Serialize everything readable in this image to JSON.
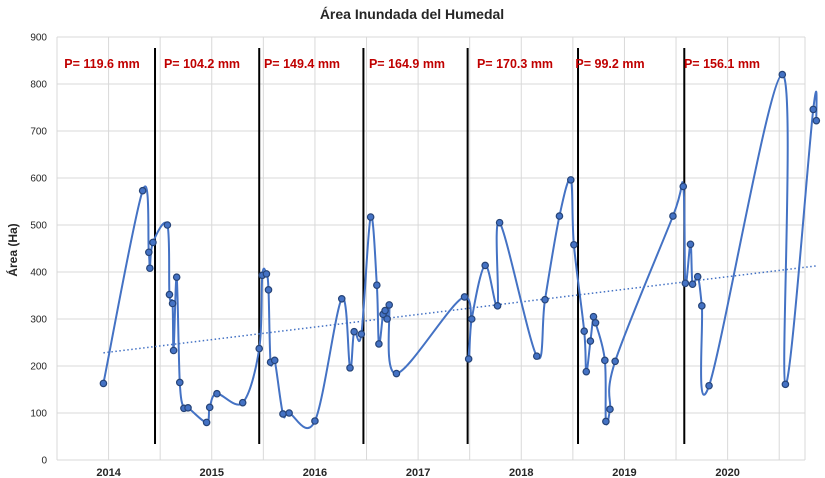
{
  "chart_data": {
    "type": "line",
    "title": "Área Inundada del Humedal",
    "xlabel": "",
    "ylabel": "Área (Ha)",
    "ylim": [
      0,
      900
    ],
    "yticks": [
      0,
      100,
      200,
      300,
      400,
      500,
      600,
      700,
      800,
      900
    ],
    "xlim": [
      2013.5,
      2020.75
    ],
    "year_labels": [
      "2014",
      "2015",
      "2016",
      "2017",
      "2018",
      "2019",
      "2020"
    ],
    "grid": true,
    "colors": {
      "series": "#4472C4",
      "marker": "#264478",
      "trend": "#4472C4",
      "annotation": "#C00000",
      "separator": "#000000",
      "grid": "#D9D9D9"
    },
    "series": [
      {
        "values": [
          [
            2013.95,
            163
          ],
          [
            2014.33,
            573
          ],
          [
            2014.39,
            442
          ],
          [
            2014.4,
            408
          ],
          [
            2014.43,
            463
          ],
          [
            2014.57,
            500
          ],
          [
            2014.59,
            352
          ],
          [
            2014.62,
            333
          ],
          [
            2014.63,
            233
          ],
          [
            2014.66,
            389
          ],
          [
            2014.69,
            165
          ],
          [
            2014.73,
            110
          ],
          [
            2014.77,
            111
          ],
          [
            2014.95,
            80
          ],
          [
            2014.98,
            112
          ],
          [
            2015.05,
            141
          ],
          [
            2015.3,
            122
          ],
          [
            2015.46,
            237
          ],
          [
            2015.49,
            393
          ],
          [
            2015.53,
            396
          ],
          [
            2015.55,
            362
          ],
          [
            2015.57,
            208
          ],
          [
            2015.61,
            212
          ],
          [
            2015.69,
            98
          ],
          [
            2015.75,
            100
          ],
          [
            2016.0,
            83
          ],
          [
            2016.26,
            343
          ],
          [
            2016.34,
            196
          ],
          [
            2016.38,
            273
          ],
          [
            2016.45,
            268
          ],
          [
            2016.54,
            517
          ],
          [
            2016.6,
            372
          ],
          [
            2016.62,
            247
          ],
          [
            2016.66,
            310
          ],
          [
            2016.68,
            318
          ],
          [
            2016.7,
            300
          ],
          [
            2016.72,
            330
          ],
          [
            2016.79,
            184
          ],
          [
            2017.45,
            347
          ],
          [
            2017.49,
            215
          ],
          [
            2017.52,
            300
          ],
          [
            2017.65,
            414
          ],
          [
            2017.77,
            328
          ],
          [
            2017.79,
            505
          ],
          [
            2018.15,
            221
          ],
          [
            2018.23,
            341
          ],
          [
            2018.37,
            519
          ],
          [
            2018.48,
            596
          ],
          [
            2018.51,
            458
          ],
          [
            2018.61,
            274
          ],
          [
            2018.63,
            188
          ],
          [
            2018.67,
            253
          ],
          [
            2018.7,
            305
          ],
          [
            2018.72,
            292
          ],
          [
            2018.81,
            212
          ],
          [
            2018.82,
            82
          ],
          [
            2018.86,
            108
          ],
          [
            2018.91,
            210
          ],
          [
            2019.47,
            519
          ],
          [
            2019.57,
            582
          ],
          [
            2019.59,
            376
          ],
          [
            2019.64,
            459
          ],
          [
            2019.66,
            374
          ],
          [
            2019.71,
            390
          ],
          [
            2019.75,
            328
          ],
          [
            2019.82,
            158
          ],
          [
            2020.53,
            820
          ],
          [
            2020.56,
            161
          ],
          [
            2020.83,
            746
          ],
          [
            2020.86,
            722
          ]
        ]
      }
    ],
    "trendline": {
      "type": "linear",
      "y_start": 228,
      "y_end": 413,
      "x_start": 2013.95,
      "x_end": 2020.86
    },
    "separators": [
      2014.45,
      2015.46,
      2016.47,
      2017.48,
      2018.55,
      2019.58
    ],
    "precipitation_labels": [
      "P= 119.6 mm",
      "P= 104.2 mm",
      "P= 149.4 mm",
      "P= 164.9 mm",
      "P= 170.3 mm",
      "P= 99.2 mm",
      "P= 156.1 mm"
    ]
  }
}
